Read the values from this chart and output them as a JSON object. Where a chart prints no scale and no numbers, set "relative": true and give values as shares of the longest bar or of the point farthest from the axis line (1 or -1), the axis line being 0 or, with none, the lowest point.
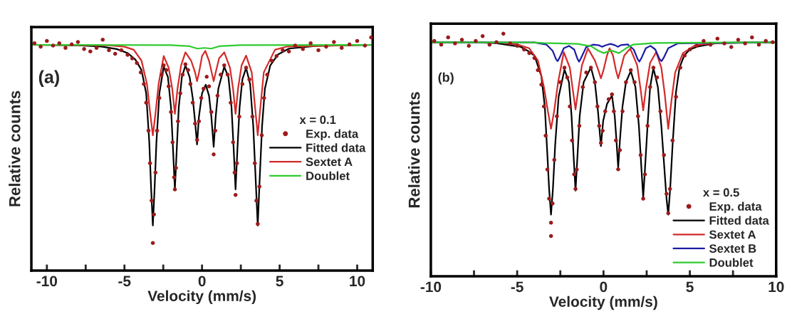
{
  "chart_data": [
    {
      "type": "line",
      "xlabel": "Velocity (mm/s)",
      "ylabel": "Relative counts",
      "relative": true,
      "legend_title": "x = 0.1",
      "legend": "right",
      "tick_labels": "x",
      "annotations": [
        "(a)"
      ],
      "xlim": [
        -11,
        11
      ],
      "xticks": [
        -10,
        {
          "value": -7.5,
          "label": null
        },
        -5,
        {
          "value": -2.5,
          "label": null
        },
        0,
        {
          "value": 2.5,
          "label": null
        },
        5,
        {
          "value": 7.5,
          "label": null
        },
        10
      ],
      "series": [
        {
          "name": "Exp. data",
          "type": "scatter",
          "marker": "circle",
          "color": "#9b1b1b",
          "x": [
            -10.8,
            -10.4,
            -10.0,
            -9.6,
            -9.2,
            -8.8,
            -8.4,
            -8.0,
            -7.6,
            -7.2,
            -6.8,
            -6.4,
            -6.0,
            -5.6,
            -5.2,
            -4.8,
            -4.5,
            -4.2,
            -3.95,
            -3.75,
            -3.6,
            -3.45,
            -3.35,
            -3.25,
            -3.17,
            -3.1,
            -3.0,
            -2.9,
            -2.75,
            -2.6,
            -2.47,
            -2.3,
            -2.15,
            -2.0,
            -1.9,
            -1.8,
            -1.75,
            -1.68,
            -1.55,
            -1.4,
            -1.25,
            -1.07,
            -0.9,
            -0.75,
            -0.6,
            -0.45,
            -0.32,
            -0.2,
            -0.05,
            0.1,
            0.3,
            0.45,
            0.6,
            0.75,
            0.85,
            1.0,
            1.2,
            1.43,
            1.65,
            1.85,
            2.0,
            2.1,
            2.16,
            2.25,
            2.4,
            2.6,
            2.84,
            3.05,
            3.25,
            3.4,
            3.5,
            3.59,
            3.7,
            3.85,
            4.0,
            4.2,
            4.5,
            4.8,
            5.2,
            5.6,
            6.0,
            6.5,
            7.0,
            7.5,
            8.0,
            8.5,
            9.0,
            9.5,
            10.0,
            10.5,
            10.9
          ],
          "values": [
            0.975,
            0.96,
            0.985,
            0.965,
            0.975,
            0.955,
            0.97,
            0.98,
            0.95,
            0.94,
            0.955,
            0.99,
            0.945,
            0.93,
            0.945,
            0.925,
            0.91,
            0.89,
            0.85,
            0.8,
            0.72,
            0.6,
            0.46,
            0.3,
            0.118,
            0.24,
            0.42,
            0.6,
            0.74,
            0.84,
            0.88,
            0.86,
            0.79,
            0.68,
            0.55,
            0.4,
            0.348,
            0.44,
            0.64,
            0.76,
            0.84,
            0.885,
            0.86,
            0.8,
            0.72,
            0.63,
            0.56,
            0.64,
            0.74,
            0.78,
            0.831,
            0.79,
            0.68,
            0.498,
            0.6,
            0.75,
            0.84,
            0.88,
            0.84,
            0.72,
            0.55,
            0.42,
            0.324,
            0.46,
            0.66,
            0.8,
            0.87,
            0.82,
            0.66,
            0.46,
            0.3,
            0.2,
            0.36,
            0.58,
            0.74,
            0.84,
            0.9,
            0.92,
            0.945,
            0.94,
            0.965,
            0.95,
            0.975,
            0.945,
            0.96,
            0.98,
            0.955,
            0.97,
            0.985,
            0.965,
            1.0
          ]
        },
        {
          "name": "Fitted data",
          "type": "line",
          "color": "#000000",
          "x": [
            -11,
            -8,
            -6.5,
            -5.5,
            -4.8,
            -4.3,
            -3.9,
            -3.6,
            -3.4,
            -3.28,
            -3.17,
            -3.06,
            -2.94,
            -2.75,
            -2.47,
            -2.2,
            -2.0,
            -1.87,
            -1.75,
            -1.63,
            -1.5,
            -1.3,
            -1.07,
            -0.8,
            -0.6,
            -0.45,
            -0.32,
            -0.2,
            0.0,
            0.24,
            0.45,
            0.6,
            0.75,
            0.88,
            1.05,
            1.43,
            1.7,
            1.9,
            2.04,
            2.16,
            2.28,
            2.42,
            2.6,
            2.84,
            3.1,
            3.3,
            3.45,
            3.59,
            3.72,
            3.87,
            4.05,
            4.4,
            4.9,
            5.6,
            7.4,
            11
          ],
          "values": [
            0.968,
            0.966,
            0.961,
            0.95,
            0.933,
            0.905,
            0.86,
            0.76,
            0.55,
            0.35,
            0.193,
            0.35,
            0.55,
            0.76,
            0.874,
            0.83,
            0.7,
            0.52,
            0.348,
            0.52,
            0.7,
            0.83,
            0.879,
            0.83,
            0.74,
            0.64,
            0.541,
            0.66,
            0.76,
            0.797,
            0.75,
            0.66,
            0.531,
            0.66,
            0.78,
            0.874,
            0.83,
            0.7,
            0.52,
            0.348,
            0.52,
            0.7,
            0.82,
            0.869,
            0.8,
            0.62,
            0.4,
            0.193,
            0.4,
            0.62,
            0.78,
            0.88,
            0.927,
            0.952,
            0.964,
            0.968
          ]
        },
        {
          "name": "Sextet A",
          "type": "line",
          "color": "#d42a2a",
          "x": [
            -11,
            -6,
            -5,
            -4.4,
            -3.9,
            -3.55,
            -3.35,
            -3.17,
            -2.99,
            -2.8,
            -2.47,
            -2.15,
            -1.92,
            -1.75,
            -1.58,
            -1.35,
            -1.07,
            -0.7,
            -0.45,
            -0.32,
            -0.19,
            0.0,
            0.21,
            0.45,
            0.62,
            0.75,
            0.88,
            1.1,
            1.43,
            1.8,
            2.0,
            2.16,
            2.32,
            2.55,
            2.84,
            3.2,
            3.42,
            3.59,
            3.76,
            3.98,
            4.7,
            5.5,
            11
          ],
          "values": [
            0.968,
            0.966,
            0.96,
            0.947,
            0.9,
            0.8,
            0.68,
            0.58,
            0.68,
            0.8,
            0.92,
            0.87,
            0.78,
            0.672,
            0.78,
            0.88,
            0.936,
            0.9,
            0.85,
            0.812,
            0.85,
            0.92,
            0.942,
            0.9,
            0.85,
            0.812,
            0.85,
            0.91,
            0.936,
            0.87,
            0.78,
            0.672,
            0.78,
            0.88,
            0.922,
            0.85,
            0.7,
            0.58,
            0.7,
            0.85,
            0.947,
            0.961,
            0.968
          ]
        },
        {
          "name": "Doublet",
          "type": "line",
          "color": "#2ecc2e",
          "x": [
            -11,
            -2,
            -0.8,
            -0.3,
            0.15,
            0.6,
            1.1,
            2.5,
            11
          ],
          "values": [
            0.968,
            0.967,
            0.962,
            0.952,
            0.955,
            0.952,
            0.962,
            0.967,
            0.968
          ]
        }
      ]
    },
    {
      "type": "line",
      "xlabel": "Velocity (mm/s)",
      "ylabel": "Relative counts",
      "relative": true,
      "legend_title": "x = 0.5",
      "legend": "lower right",
      "tick_labels": "x",
      "annotations": [
        "(b)"
      ],
      "xlim": [
        -10,
        10
      ],
      "xticks": [
        -10,
        {
          "value": -7.5,
          "label": null
        },
        -5,
        {
          "value": -2.5,
          "label": null
        },
        0,
        {
          "value": 2.5,
          "label": null
        },
        5,
        {
          "value": 7.5,
          "label": null
        },
        10
      ],
      "series": [
        {
          "name": "Exp. data",
          "type": "scatter",
          "marker": "circle",
          "color": "#9b1b1b",
          "x": [
            -9.8,
            -9.4,
            -9.0,
            -8.6,
            -8.2,
            -7.8,
            -7.4,
            -7.0,
            -6.6,
            -6.2,
            -5.8,
            -5.4,
            -5.0,
            -4.6,
            -4.3,
            -4.0,
            -3.8,
            -3.6,
            -3.45,
            -3.35,
            -3.25,
            -3.15,
            -3.04,
            -3.04,
            -2.95,
            -2.85,
            -2.7,
            -2.5,
            -2.26,
            -2.1,
            -1.95,
            -1.82,
            -1.7,
            -1.62,
            -1.55,
            -1.4,
            -1.2,
            -1.0,
            -0.73,
            -0.5,
            -0.35,
            -0.25,
            -0.15,
            -0.05,
            0.1,
            0.3,
            0.49,
            0.6,
            0.72,
            0.85,
            0.95,
            1.1,
            1.3,
            1.58,
            1.8,
            2.0,
            2.15,
            2.3,
            2.4,
            2.55,
            2.7,
            2.89,
            3.1,
            3.3,
            3.5,
            3.65,
            3.75,
            3.85,
            4.0,
            4.2,
            4.45,
            4.7,
            5.0,
            5.4,
            5.8,
            6.2,
            6.6,
            7.0,
            7.4,
            7.8,
            8.2,
            8.6,
            9.0,
            9.4,
            9.8
          ],
          "values": [
            0.97,
            0.955,
            0.985,
            0.96,
            0.975,
            0.95,
            0.97,
            0.99,
            0.955,
            0.965,
            1.0,
            0.96,
            0.95,
            0.935,
            0.92,
            0.9,
            0.85,
            0.79,
            0.7,
            0.58,
            0.44,
            0.32,
            0.221,
            0.166,
            0.3,
            0.48,
            0.66,
            0.8,
            0.86,
            0.82,
            0.7,
            0.56,
            0.42,
            0.36,
            0.44,
            0.62,
            0.78,
            0.84,
            0.86,
            0.8,
            0.7,
            0.62,
            0.55,
            0.6,
            0.68,
            0.73,
            0.75,
            0.68,
            0.56,
            0.441,
            0.52,
            0.68,
            0.8,
            0.85,
            0.8,
            0.66,
            0.5,
            0.32,
            0.42,
            0.62,
            0.78,
            0.86,
            0.82,
            0.68,
            0.5,
            0.34,
            0.26,
            0.36,
            0.56,
            0.74,
            0.86,
            0.91,
            0.935,
            0.95,
            0.97,
            0.955,
            0.98,
            0.96,
            0.945,
            0.975,
            0.96,
            0.985,
            0.955,
            0.97,
            0.965
          ]
        },
        {
          "name": "Fitted data",
          "type": "line",
          "color": "#000000",
          "x": [
            -10,
            -7,
            -6.2,
            -5.4,
            -4.8,
            -4.4,
            -4.0,
            -3.6,
            -3.4,
            -3.25,
            -3.15,
            -3.04,
            -2.93,
            -2.8,
            -2.6,
            -2.26,
            -2.0,
            -1.85,
            -1.72,
            -1.62,
            -1.52,
            -1.38,
            -1.15,
            -0.73,
            -0.5,
            -0.32,
            -0.15,
            -0.02,
            0.2,
            0.49,
            0.65,
            0.75,
            0.85,
            0.95,
            1.1,
            1.3,
            1.58,
            1.85,
            2.05,
            2.2,
            2.3,
            2.4,
            2.55,
            2.7,
            2.89,
            3.15,
            3.35,
            3.55,
            3.65,
            3.75,
            3.86,
            4.0,
            4.2,
            4.4,
            4.67,
            5.0,
            5.5,
            6.5,
            10
          ],
          "values": [
            0.965,
            0.963,
            0.961,
            0.952,
            0.946,
            0.93,
            0.91,
            0.825,
            0.7,
            0.5,
            0.36,
            0.254,
            0.36,
            0.54,
            0.74,
            0.852,
            0.8,
            0.66,
            0.48,
            0.353,
            0.48,
            0.66,
            0.8,
            0.861,
            0.8,
            0.68,
            0.537,
            0.64,
            0.71,
            0.745,
            0.66,
            0.56,
            0.448,
            0.56,
            0.7,
            0.8,
            0.846,
            0.78,
            0.62,
            0.44,
            0.325,
            0.44,
            0.62,
            0.78,
            0.858,
            0.78,
            0.62,
            0.42,
            0.32,
            0.254,
            0.36,
            0.54,
            0.76,
            0.86,
            0.91,
            0.935,
            0.948,
            0.961,
            0.965
          ]
        },
        {
          "name": "Sextet A",
          "type": "line",
          "color": "#d42a2a",
          "x": [
            -10,
            -6,
            -5,
            -4.3,
            -3.8,
            -3.45,
            -3.22,
            -3.04,
            -2.86,
            -2.63,
            -2.3,
            -1.95,
            -1.78,
            -1.62,
            -1.46,
            -1.25,
            -0.9,
            -0.5,
            -0.3,
            -0.15,
            0.0,
            0.2,
            0.35,
            0.55,
            0.72,
            0.85,
            0.98,
            1.2,
            1.55,
            1.95,
            2.15,
            2.3,
            2.45,
            2.7,
            3.05,
            3.35,
            3.55,
            3.75,
            3.93,
            4.15,
            4.6,
            5.3,
            6.5,
            10
          ],
          "values": [
            0.965,
            0.963,
            0.956,
            0.94,
            0.89,
            0.78,
            0.68,
            0.608,
            0.68,
            0.8,
            0.924,
            0.86,
            0.77,
            0.688,
            0.77,
            0.87,
            0.939,
            0.89,
            0.85,
            0.816,
            0.85,
            0.91,
            0.94,
            0.91,
            0.85,
            0.816,
            0.85,
            0.91,
            0.939,
            0.87,
            0.77,
            0.684,
            0.77,
            0.88,
            0.924,
            0.86,
            0.75,
            0.608,
            0.72,
            0.84,
            0.92,
            0.952,
            0.962,
            0.965
          ]
        },
        {
          "name": "Sextet B",
          "type": "line",
          "color": "#1c1ca6",
          "x": [
            -10,
            -4,
            -3.3,
            -2.95,
            -2.75,
            -2.66,
            -2.55,
            -2.3,
            -2.0,
            -1.7,
            -1.5,
            -1.41,
            -1.3,
            -1.0,
            -0.6,
            -0.25,
            -0.08,
            0.1,
            0.4,
            0.65,
            0.84,
            1.0,
            1.4,
            1.75,
            1.98,
            2.08,
            2.2,
            2.45,
            2.72,
            3.0,
            3.25,
            3.36,
            3.48,
            3.75,
            4.3,
            10
          ],
          "values": [
            0.965,
            0.964,
            0.955,
            0.93,
            0.895,
            0.887,
            0.9,
            0.94,
            0.95,
            0.935,
            0.895,
            0.885,
            0.9,
            0.945,
            0.955,
            0.952,
            0.946,
            0.952,
            0.958,
            0.953,
            0.946,
            0.953,
            0.956,
            0.935,
            0.895,
            0.885,
            0.9,
            0.94,
            0.95,
            0.935,
            0.895,
            0.887,
            0.9,
            0.94,
            0.96,
            0.965
          ]
        },
        {
          "name": "Doublet",
          "type": "line",
          "color": "#2ecc2e",
          "x": [
            -10,
            -4,
            -3.5,
            -1.5,
            -0.7,
            -0.3,
            0.0,
            0.45,
            0.9,
            1.3,
            1.7,
            3,
            10
          ],
          "values": [
            0.965,
            0.964,
            0.962,
            0.958,
            0.948,
            0.93,
            0.92,
            0.931,
            0.92,
            0.94,
            0.955,
            0.962,
            0.965
          ]
        }
      ]
    }
  ]
}
